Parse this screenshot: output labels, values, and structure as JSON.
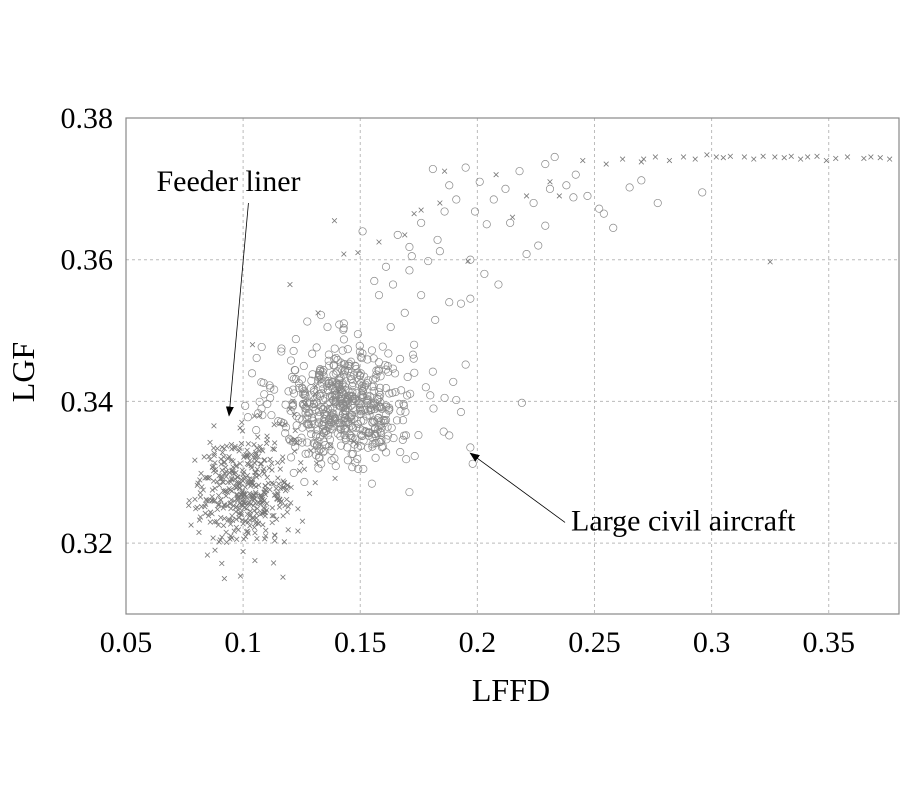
{
  "chart_data": {
    "type": "scatter",
    "title": "",
    "xlabel": "LFFD",
    "ylabel": "LGF",
    "xlim": [
      0.05,
      0.38
    ],
    "ylim": [
      0.31,
      0.38
    ],
    "xticks": [
      0.05,
      0.1,
      0.15,
      0.2,
      0.25,
      0.3,
      0.35
    ],
    "xtick_labels": [
      "0.05",
      "0.1",
      "0.15",
      "0.2",
      "0.25",
      "0.3",
      "0.35"
    ],
    "yticks": [
      0.32,
      0.34,
      0.36,
      0.38
    ],
    "ytick_labels": [
      "0.32",
      "0.34",
      "0.36",
      "0.38"
    ],
    "grid": true,
    "colors": {
      "feeder": "#777777",
      "large": "#8a8a8a",
      "grid": "#bbbbbb",
      "frame": "#888888"
    },
    "annotations": [
      {
        "text": "Feeder liner",
        "points_to": [
          0.094,
          0.338
        ],
        "label_at": [
          0.063,
          0.3697
        ]
      },
      {
        "text": "Large civil aircraft",
        "points_to": [
          0.197,
          0.3327
        ],
        "label_at": [
          0.24,
          0.3218
        ]
      }
    ],
    "series": [
      {
        "name": "Feeder liner",
        "marker": "x",
        "clusters": [
          {
            "n": 420,
            "cx": 0.101,
            "cy": 0.3275,
            "sx": 0.0105,
            "sy": 0.0037
          },
          {
            "n": 20,
            "cx": 0.125,
            "cy": 0.336,
            "sx": 0.008,
            "sy": 0.003
          }
        ],
        "points": [
          [
            0.173,
            0.3665
          ],
          [
            0.186,
            0.3725
          ],
          [
            0.139,
            0.3655
          ],
          [
            0.143,
            0.3608
          ],
          [
            0.158,
            0.3625
          ],
          [
            0.169,
            0.3635
          ],
          [
            0.184,
            0.368
          ],
          [
            0.208,
            0.372
          ],
          [
            0.221,
            0.369
          ],
          [
            0.231,
            0.371
          ],
          [
            0.245,
            0.374
          ],
          [
            0.255,
            0.3735
          ],
          [
            0.262,
            0.3742
          ],
          [
            0.27,
            0.3738
          ],
          [
            0.276,
            0.3745
          ],
          [
            0.282,
            0.374
          ],
          [
            0.288,
            0.3745
          ],
          [
            0.293,
            0.3742
          ],
          [
            0.298,
            0.3748
          ],
          [
            0.302,
            0.3745
          ],
          [
            0.305,
            0.3744
          ],
          [
            0.308,
            0.3746
          ],
          [
            0.314,
            0.3745
          ],
          [
            0.318,
            0.3742
          ],
          [
            0.322,
            0.3746
          ],
          [
            0.327,
            0.3745
          ],
          [
            0.331,
            0.3744
          ],
          [
            0.334,
            0.3746
          ],
          [
            0.338,
            0.3742
          ],
          [
            0.341,
            0.3745
          ],
          [
            0.345,
            0.3746
          ],
          [
            0.349,
            0.374
          ],
          [
            0.353,
            0.3743
          ],
          [
            0.358,
            0.3745
          ],
          [
            0.365,
            0.3743
          ],
          [
            0.368,
            0.3745
          ],
          [
            0.372,
            0.3744
          ],
          [
            0.376,
            0.3742
          ],
          [
            0.325,
            0.3597
          ],
          [
            0.271,
            0.3742
          ],
          [
            0.196,
            0.3598
          ],
          [
            0.176,
            0.367
          ],
          [
            0.215,
            0.366
          ],
          [
            0.235,
            0.369
          ],
          [
            0.149,
            0.361
          ],
          [
            0.104,
            0.348
          ],
          [
            0.107,
            0.338
          ],
          [
            0.083,
            0.3275
          ],
          [
            0.077,
            0.326
          ],
          [
            0.088,
            0.319
          ],
          [
            0.092,
            0.315
          ],
          [
            0.117,
            0.3152
          ],
          [
            0.113,
            0.3172
          ],
          [
            0.12,
            0.3565
          ],
          [
            0.132,
            0.3525
          ]
        ]
      },
      {
        "name": "Large civil aircraft",
        "marker": "o",
        "clusters": [
          {
            "n": 560,
            "cx": 0.143,
            "cy": 0.3395,
            "sx": 0.0145,
            "sy": 0.0042
          }
        ],
        "points": [
          [
            0.181,
            0.3728
          ],
          [
            0.188,
            0.3705
          ],
          [
            0.195,
            0.373
          ],
          [
            0.201,
            0.371
          ],
          [
            0.207,
            0.3685
          ],
          [
            0.212,
            0.37
          ],
          [
            0.218,
            0.3725
          ],
          [
            0.224,
            0.368
          ],
          [
            0.229,
            0.3735
          ],
          [
            0.233,
            0.3745
          ],
          [
            0.238,
            0.3705
          ],
          [
            0.242,
            0.372
          ],
          [
            0.247,
            0.369
          ],
          [
            0.252,
            0.3672
          ],
          [
            0.258,
            0.3645
          ],
          [
            0.265,
            0.3702
          ],
          [
            0.27,
            0.3712
          ],
          [
            0.277,
            0.368
          ],
          [
            0.296,
            0.3695
          ],
          [
            0.214,
            0.3652
          ],
          [
            0.221,
            0.3608
          ],
          [
            0.226,
            0.362
          ],
          [
            0.191,
            0.3685
          ],
          [
            0.186,
            0.3668
          ],
          [
            0.176,
            0.3652
          ],
          [
            0.171,
            0.3618
          ],
          [
            0.166,
            0.3635
          ],
          [
            0.179,
            0.3598
          ],
          [
            0.184,
            0.3612
          ],
          [
            0.197,
            0.36
          ],
          [
            0.203,
            0.358
          ],
          [
            0.209,
            0.3565
          ],
          [
            0.161,
            0.359
          ],
          [
            0.156,
            0.357
          ],
          [
            0.151,
            0.364
          ],
          [
            0.172,
            0.3605
          ],
          [
            0.188,
            0.354
          ],
          [
            0.193,
            0.3538
          ],
          [
            0.197,
            0.3545
          ],
          [
            0.182,
            0.3515
          ],
          [
            0.176,
            0.355
          ],
          [
            0.171,
            0.3585
          ],
          [
            0.164,
            0.3565
          ],
          [
            0.158,
            0.355
          ],
          [
            0.169,
            0.3525
          ],
          [
            0.163,
            0.3505
          ],
          [
            0.173,
            0.348
          ],
          [
            0.167,
            0.346
          ],
          [
            0.161,
            0.3445
          ],
          [
            0.155,
            0.3472
          ],
          [
            0.149,
            0.3495
          ],
          [
            0.143,
            0.351
          ],
          [
            0.181,
            0.3442
          ],
          [
            0.178,
            0.342
          ],
          [
            0.186,
            0.3405
          ],
          [
            0.191,
            0.3402
          ],
          [
            0.195,
            0.3452
          ],
          [
            0.193,
            0.3385
          ],
          [
            0.188,
            0.3352
          ],
          [
            0.197,
            0.3335
          ],
          [
            0.198,
            0.3312
          ],
          [
            0.171,
            0.3272
          ],
          [
            0.219,
            0.3398
          ],
          [
            0.241,
            0.3688
          ],
          [
            0.254,
            0.3665
          ],
          [
            0.183,
            0.3628
          ],
          [
            0.204,
            0.365
          ],
          [
            0.199,
            0.3668
          ],
          [
            0.229,
            0.3648
          ],
          [
            0.231,
            0.37
          ]
        ]
      }
    ]
  }
}
